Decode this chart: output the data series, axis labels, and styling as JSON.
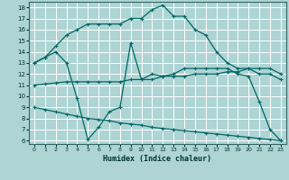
{
  "xlabel": "Humidex (Indice chaleur)",
  "xlim": [
    0,
    23
  ],
  "ylim": [
    6,
    18
  ],
  "xticks": [
    0,
    1,
    2,
    3,
    4,
    5,
    6,
    7,
    8,
    9,
    10,
    11,
    12,
    13,
    14,
    15,
    16,
    17,
    18,
    19,
    20,
    21,
    22,
    23
  ],
  "yticks": [
    6,
    7,
    8,
    9,
    10,
    11,
    12,
    13,
    14,
    15,
    16,
    17,
    18
  ],
  "line_color": "#006666",
  "bg_color": "#aed4d4",
  "grid_color": "#ffffff",
  "series": [
    {
      "x": [
        0,
        1,
        2,
        3,
        4,
        5,
        6,
        7,
        8,
        9,
        10,
        11,
        12,
        13,
        14,
        15,
        16,
        17,
        18,
        19,
        20,
        21,
        22,
        23
      ],
      "y": [
        13,
        13.5,
        14.5,
        15.5,
        16,
        16.5,
        16.5,
        16.5,
        16.5,
        17,
        17,
        17.8,
        18.2,
        17.2,
        17.2,
        16,
        15.5,
        14,
        13,
        12.5,
        12.5,
        12,
        12,
        11.5
      ]
    },
    {
      "comment": "zigzag line: 13->6->15->12->9->7->6",
      "x": [
        0,
        1,
        2,
        3,
        4,
        5,
        6,
        7,
        8,
        9,
        10,
        11,
        12,
        13,
        14,
        15,
        16,
        17,
        18,
        19,
        20,
        21,
        22,
        23
      ],
      "y": [
        13,
        13.5,
        14,
        13,
        9.8,
        6.1,
        7.2,
        8.6,
        9,
        14.8,
        11.5,
        12,
        11.8,
        12,
        12.5,
        12.5,
        12.5,
        12.5,
        12.5,
        12,
        11.8,
        9.5,
        7,
        6
      ]
    },
    {
      "x": [
        0,
        1,
        2,
        3,
        4,
        5,
        6,
        7,
        8,
        9,
        10,
        11,
        12,
        13,
        14,
        15,
        16,
        17,
        18,
        19,
        20,
        21,
        22,
        23
      ],
      "y": [
        11,
        11.1,
        11.2,
        11.3,
        11.3,
        11.3,
        11.3,
        11.3,
        11.3,
        11.5,
        11.5,
        11.5,
        11.8,
        11.8,
        11.8,
        12,
        12,
        12,
        12.2,
        12.2,
        12.5,
        12.5,
        12.5,
        12
      ]
    },
    {
      "x": [
        0,
        1,
        2,
        3,
        4,
        5,
        6,
        7,
        8,
        9,
        10,
        11,
        12,
        13,
        14,
        15,
        16,
        17,
        18,
        19,
        20,
        21,
        22,
        23
      ],
      "y": [
        9.0,
        8.8,
        8.6,
        8.4,
        8.2,
        8.0,
        7.9,
        7.8,
        7.6,
        7.5,
        7.4,
        7.2,
        7.1,
        7.0,
        6.9,
        6.8,
        6.7,
        6.6,
        6.5,
        6.4,
        6.3,
        6.2,
        6.1,
        6.0
      ]
    }
  ]
}
